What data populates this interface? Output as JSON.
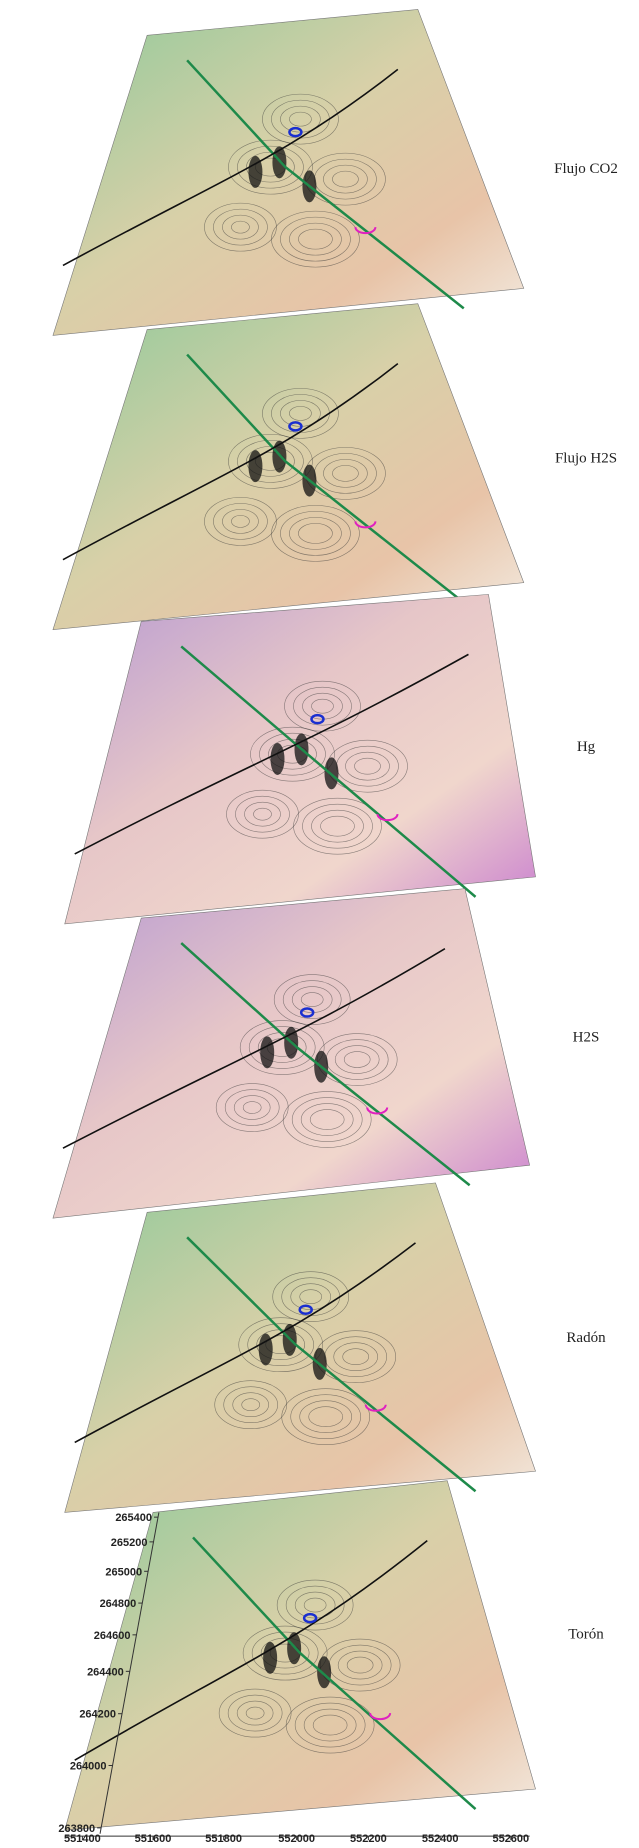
{
  "panels": [
    {
      "label": "Flujo CO2"
    },
    {
      "label": "Flujo H2S"
    },
    {
      "label": "Hg"
    },
    {
      "label": "H2S"
    },
    {
      "label": "Radón"
    },
    {
      "label": "Torón"
    }
  ],
  "axes": {
    "y_ticks": [
      265400,
      265200,
      265000,
      264800,
      264600,
      264400,
      264200,
      264000,
      263800
    ],
    "x_ticks": [
      551400,
      551600,
      551800,
      552000,
      552200,
      552400,
      552600
    ]
  }
}
